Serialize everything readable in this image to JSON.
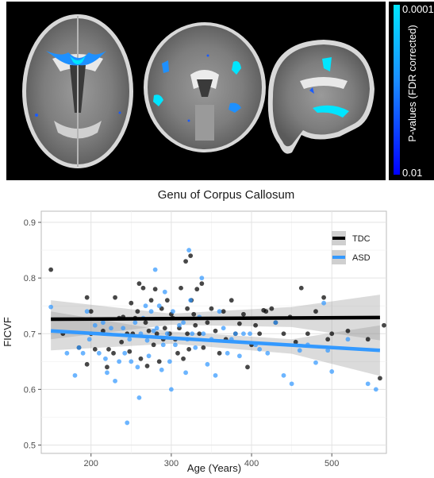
{
  "figure": {
    "colorbar": {
      "top_label": "0.0001",
      "bottom_label": "0.01",
      "axis_label": "P-values (FDR corrected)",
      "colors": [
        "#00e5ff",
        "#1a8cff",
        "#0000ff"
      ]
    }
  },
  "chart_data": {
    "type": "scatter",
    "title": "Genu of Corpus Callosum",
    "xlabel": "Age (Years)",
    "ylabel": "FICVF",
    "xlim": [
      138,
      568
    ],
    "ylim": [
      0.485,
      0.92
    ],
    "xticks": [
      200,
      300,
      400,
      500
    ],
    "yticks": [
      0.5,
      0.6,
      0.7,
      0.8,
      0.9
    ],
    "xtick_labels": [
      "200",
      "300",
      "400",
      "500"
    ],
    "ytick_labels": [
      "0.5",
      "0.6",
      "0.7",
      "0.8",
      "0.9"
    ],
    "grid": true,
    "legend_position": "top-right",
    "series": [
      {
        "name": "TDC",
        "color": "#000000",
        "trend": {
          "x": [
            150,
            560
          ],
          "y": [
            0.726,
            0.729
          ]
        },
        "band": {
          "x": [
            150,
            300,
            450,
            560
          ],
          "upper": [
            0.76,
            0.736,
            0.748,
            0.77
          ],
          "lower": [
            0.69,
            0.716,
            0.712,
            0.688
          ]
        },
        "points": [
          [
            150,
            0.815
          ],
          [
            165,
            0.7
          ],
          [
            185,
            0.675
          ],
          [
            195,
            0.645
          ],
          [
            195,
            0.765
          ],
          [
            200,
            0.7
          ],
          [
            200,
            0.74
          ],
          [
            205,
            0.672
          ],
          [
            215,
            0.705
          ],
          [
            220,
            0.64
          ],
          [
            222,
            0.672
          ],
          [
            228,
            0.665
          ],
          [
            230,
            0.765
          ],
          [
            235,
            0.728
          ],
          [
            238,
            0.685
          ],
          [
            240,
            0.73
          ],
          [
            245,
            0.7
          ],
          [
            248,
            0.668
          ],
          [
            250,
            0.755
          ],
          [
            252,
            0.7
          ],
          [
            255,
            0.728
          ],
          [
            258,
            0.74
          ],
          [
            260,
            0.79
          ],
          [
            262,
            0.655
          ],
          [
            265,
            0.782
          ],
          [
            268,
            0.72
          ],
          [
            270,
            0.642
          ],
          [
            272,
            0.705
          ],
          [
            275,
            0.76
          ],
          [
            278,
            0.68
          ],
          [
            280,
            0.78
          ],
          [
            282,
            0.7
          ],
          [
            285,
            0.65
          ],
          [
            288,
            0.745
          ],
          [
            290,
            0.69
          ],
          [
            292,
            0.71
          ],
          [
            295,
            0.76
          ],
          [
            298,
            0.7
          ],
          [
            300,
            0.735
          ],
          [
            302,
            0.728
          ],
          [
            305,
            0.69
          ],
          [
            308,
            0.665
          ],
          [
            310,
            0.71
          ],
          [
            312,
            0.782
          ],
          [
            315,
            0.655
          ],
          [
            318,
            0.83
          ],
          [
            320,
            0.7
          ],
          [
            320,
            0.745
          ],
          [
            322,
            0.672
          ],
          [
            324,
            0.84
          ],
          [
            325,
            0.76
          ],
          [
            328,
            0.735
          ],
          [
            330,
            0.715
          ],
          [
            332,
            0.78
          ],
          [
            335,
            0.7
          ],
          [
            338,
            0.79
          ],
          [
            340,
            0.675
          ],
          [
            345,
            0.72
          ],
          [
            350,
            0.745
          ],
          [
            355,
            0.705
          ],
          [
            360,
            0.665
          ],
          [
            365,
            0.74
          ],
          [
            368,
            0.69
          ],
          [
            375,
            0.76
          ],
          [
            380,
            0.7
          ],
          [
            385,
            0.718
          ],
          [
            390,
            0.735
          ],
          [
            395,
            0.64
          ],
          [
            400,
            0.68
          ],
          [
            405,
            0.715
          ],
          [
            410,
            0.7
          ],
          [
            415,
            0.742
          ],
          [
            418,
            0.74
          ],
          [
            425,
            0.745
          ],
          [
            430,
            0.72
          ],
          [
            440,
            0.7
          ],
          [
            448,
            0.73
          ],
          [
            455,
            0.685
          ],
          [
            462,
            0.782
          ],
          [
            470,
            0.7
          ],
          [
            480,
            0.74
          ],
          [
            490,
            0.765
          ],
          [
            495,
            0.69
          ],
          [
            500,
            0.7
          ],
          [
            520,
            0.705
          ],
          [
            545,
            0.69
          ],
          [
            560,
            0.62
          ],
          [
            565,
            0.715
          ]
        ]
      },
      {
        "name": "ASD",
        "color": "#3399ff",
        "trend": {
          "x": [
            150,
            560
          ],
          "y": [
            0.705,
            0.67
          ]
        },
        "band": {
          "x": [
            150,
            300,
            450,
            560
          ],
          "upper": [
            0.74,
            0.704,
            0.69,
            0.715
          ],
          "lower": [
            0.67,
            0.682,
            0.664,
            0.624
          ]
        },
        "points": [
          [
            150,
            0.748
          ],
          [
            170,
            0.665
          ],
          [
            180,
            0.625
          ],
          [
            185,
            0.675
          ],
          [
            190,
            0.665
          ],
          [
            195,
            0.74
          ],
          [
            198,
            0.69
          ],
          [
            205,
            0.715
          ],
          [
            210,
            0.665
          ],
          [
            215,
            0.72
          ],
          [
            218,
            0.655
          ],
          [
            220,
            0.63
          ],
          [
            225,
            0.71
          ],
          [
            230,
            0.615
          ],
          [
            235,
            0.65
          ],
          [
            240,
            0.71
          ],
          [
            242,
            0.665
          ],
          [
            245,
            0.54
          ],
          [
            248,
            0.69
          ],
          [
            250,
            0.65
          ],
          [
            255,
            0.72
          ],
          [
            258,
            0.64
          ],
          [
            260,
            0.585
          ],
          [
            262,
            0.7
          ],
          [
            265,
            0.728
          ],
          [
            268,
            0.75
          ],
          [
            270,
            0.688
          ],
          [
            272,
            0.66
          ],
          [
            275,
            0.74
          ],
          [
            278,
            0.705
          ],
          [
            280,
            0.815
          ],
          [
            282,
            0.71
          ],
          [
            285,
            0.75
          ],
          [
            288,
            0.635
          ],
          [
            290,
            0.68
          ],
          [
            292,
            0.775
          ],
          [
            295,
            0.7
          ],
          [
            298,
            0.65
          ],
          [
            300,
            0.6
          ],
          [
            302,
            0.74
          ],
          [
            305,
            0.68
          ],
          [
            310,
            0.715
          ],
          [
            315,
            0.72
          ],
          [
            318,
            0.63
          ],
          [
            320,
            0.69
          ],
          [
            322,
            0.85
          ],
          [
            324,
            0.76
          ],
          [
            326,
            0.7
          ],
          [
            330,
            0.675
          ],
          [
            335,
            0.73
          ],
          [
            338,
            0.8
          ],
          [
            340,
            0.7
          ],
          [
            345,
            0.645
          ],
          [
            350,
            0.69
          ],
          [
            355,
            0.625
          ],
          [
            360,
            0.74
          ],
          [
            365,
            0.71
          ],
          [
            370,
            0.665
          ],
          [
            375,
            0.69
          ],
          [
            380,
            0.7
          ],
          [
            385,
            0.66
          ],
          [
            390,
            0.7
          ],
          [
            398,
            0.7
          ],
          [
            405,
            0.68
          ],
          [
            410,
            0.672
          ],
          [
            420,
            0.665
          ],
          [
            430,
            0.72
          ],
          [
            440,
            0.625
          ],
          [
            450,
            0.61
          ],
          [
            460,
            0.67
          ],
          [
            470,
            0.68
          ],
          [
            480,
            0.648
          ],
          [
            490,
            0.755
          ],
          [
            495,
            0.67
          ],
          [
            500,
            0.632
          ],
          [
            520,
            0.69
          ],
          [
            545,
            0.61
          ],
          [
            555,
            0.6
          ]
        ]
      }
    ]
  }
}
